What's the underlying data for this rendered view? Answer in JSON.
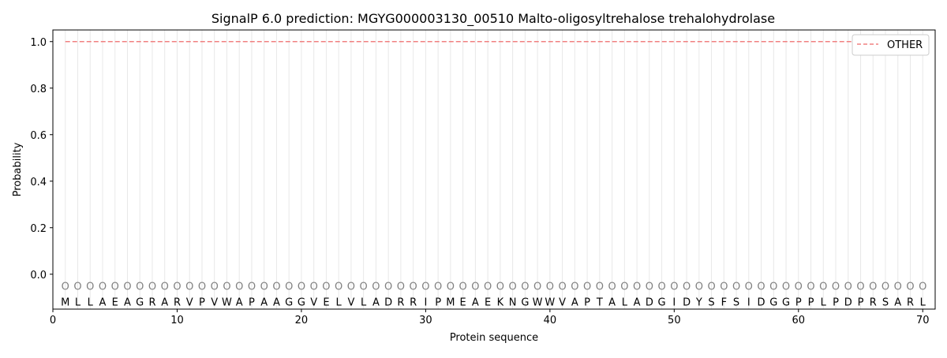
{
  "chart_data": {
    "type": "line",
    "title": "SignalP 6.0 prediction: MGYG000003130_00510 Malto-oligosyltrehalose trehalohydrolase",
    "xlabel": "Protein sequence",
    "ylabel": "Probability",
    "xlim": [
      0,
      71
    ],
    "ylim": [
      -0.15,
      1.05
    ],
    "xticks": [
      0,
      10,
      20,
      30,
      40,
      50,
      60,
      70
    ],
    "yticks": [
      0.0,
      0.2,
      0.4,
      0.6,
      0.8,
      1.0
    ],
    "ytick_labels": [
      "0.0",
      "0.2",
      "0.4",
      "0.6",
      "0.8",
      "1.0"
    ],
    "grid": "vertical lines at each residue",
    "legend_position": "top-right",
    "sequence": [
      "M",
      "L",
      "L",
      "A",
      "E",
      "A",
      "G",
      "R",
      "A",
      "R",
      "V",
      "P",
      "V",
      "W",
      "A",
      "P",
      "A",
      "A",
      "G",
      "G",
      "V",
      "E",
      "L",
      "V",
      "L",
      "A",
      "D",
      "R",
      "R",
      "I",
      "P",
      "M",
      "E",
      "A",
      "E",
      "K",
      "N",
      "G",
      "W",
      "W",
      "V",
      "A",
      "P",
      "T",
      "A",
      "L",
      "A",
      "D",
      "G",
      "I",
      "D",
      "Y",
      "S",
      "F",
      "S",
      "I",
      "D",
      "G",
      "G",
      "P",
      "P",
      "L",
      "P",
      "D",
      "P",
      "R",
      "S",
      "A",
      "R",
      "L"
    ],
    "predicted_labels": "OOOOOOOOOOOOOOOOOOOOOOOOOOOOOOOOOOOOOOOOOOOOOOOOOOOOOOOOOOOOOOOOOOOOOO",
    "series": [
      {
        "name": "OTHER",
        "color": "#f08080",
        "style": "dashed",
        "x_range": [
          1,
          70
        ],
        "value": 1.0
      }
    ]
  }
}
